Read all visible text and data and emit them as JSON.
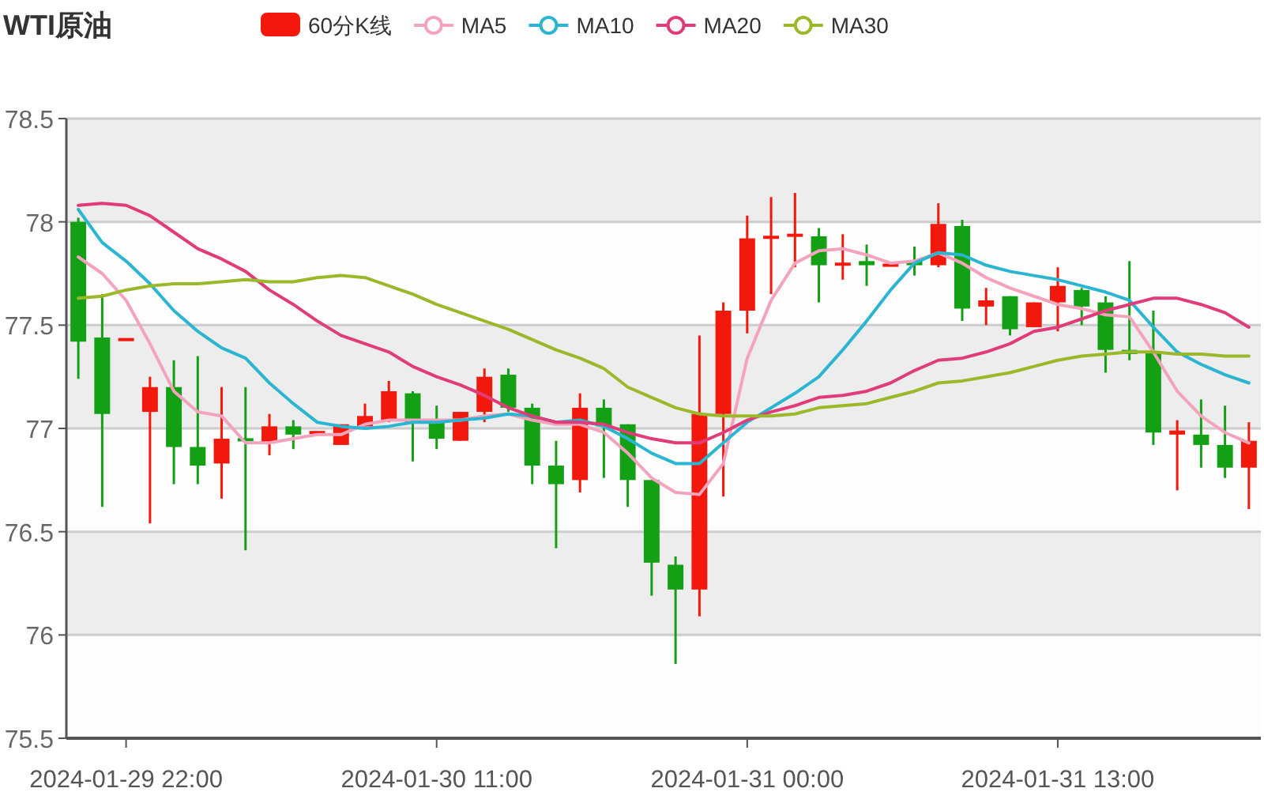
{
  "chart_data": {
    "type": "candlestick",
    "title": "WTI原油",
    "categories": [
      null,
      null,
      "2024-01-29 22:00",
      null,
      null,
      null,
      null,
      null,
      null,
      null,
      null,
      null,
      null,
      null,
      null,
      "2024-01-30 11:00",
      null,
      null,
      null,
      null,
      null,
      null,
      null,
      null,
      null,
      null,
      null,
      null,
      "2024-01-31 00:00",
      null,
      null,
      null,
      null,
      null,
      null,
      null,
      null,
      null,
      null,
      null,
      null,
      "2024-01-31 13:00",
      null,
      null,
      null,
      null,
      null,
      null,
      null,
      null
    ],
    "ylim": [
      75.5,
      78.5
    ],
    "yticks": [
      75.5,
      76,
      76.5,
      77,
      77.5,
      78,
      78.5
    ],
    "grid": "y",
    "legend": "top",
    "series": [
      {
        "name": "60分K线",
        "type": "candlestick",
        "color": "#f2180c",
        "ohlc": [
          [
            78.0,
            78.02,
            77.24,
            77.42
          ],
          [
            77.44,
            77.65,
            76.62,
            77.07
          ],
          [
            77.43,
            77.43,
            77.43,
            77.43
          ],
          [
            77.08,
            77.25,
            76.54,
            77.2
          ],
          [
            77.2,
            77.33,
            76.73,
            76.91
          ],
          [
            76.91,
            77.35,
            76.73,
            76.82
          ],
          [
            76.83,
            77.2,
            76.66,
            76.95
          ],
          [
            76.95,
            77.2,
            76.41,
            76.94
          ],
          [
            76.93,
            77.07,
            76.87,
            77.01
          ],
          [
            77.01,
            77.04,
            76.9,
            76.97
          ],
          [
            76.98,
            76.98,
            76.98,
            76.98
          ],
          [
            76.92,
            77.02,
            76.92,
            77.02
          ],
          [
            77.01,
            77.12,
            77.01,
            77.06
          ],
          [
            77.04,
            77.23,
            77.03,
            77.18
          ],
          [
            77.17,
            77.18,
            76.84,
            77.03
          ],
          [
            77.03,
            77.11,
            76.9,
            76.95
          ],
          [
            76.94,
            77.08,
            76.94,
            77.08
          ],
          [
            77.08,
            77.29,
            77.03,
            77.25
          ],
          [
            77.26,
            77.29,
            77.08,
            77.1
          ],
          [
            77.1,
            77.12,
            76.73,
            76.82
          ],
          [
            76.82,
            76.94,
            76.42,
            76.73
          ],
          [
            76.75,
            77.17,
            76.69,
            77.1
          ],
          [
            77.1,
            77.14,
            76.76,
            77.01
          ],
          [
            77.02,
            77.02,
            76.62,
            76.75
          ],
          [
            76.75,
            76.75,
            76.19,
            76.35
          ],
          [
            76.34,
            76.38,
            75.86,
            76.22
          ],
          [
            76.22,
            77.45,
            76.09,
            77.07
          ],
          [
            77.07,
            77.61,
            76.67,
            77.57
          ],
          [
            77.57,
            78.03,
            77.46,
            77.92
          ],
          [
            77.92,
            78.12,
            77.65,
            77.93
          ],
          [
            77.93,
            78.14,
            77.78,
            77.94
          ],
          [
            77.93,
            77.97,
            77.61,
            77.79
          ],
          [
            77.79,
            77.94,
            77.72,
            77.8
          ],
          [
            77.81,
            77.89,
            77.69,
            77.79
          ],
          [
            77.79,
            77.79,
            77.79,
            77.79
          ],
          [
            77.81,
            77.88,
            77.74,
            77.79
          ],
          [
            77.79,
            78.09,
            77.78,
            77.99
          ],
          [
            77.98,
            78.01,
            77.52,
            77.58
          ],
          [
            77.59,
            77.68,
            77.5,
            77.62
          ],
          [
            77.64,
            77.64,
            77.45,
            77.48
          ],
          [
            77.49,
            77.61,
            77.49,
            77.61
          ],
          [
            77.61,
            77.78,
            77.47,
            77.69
          ],
          [
            77.67,
            77.68,
            77.5,
            77.59
          ],
          [
            77.61,
            77.64,
            77.27,
            77.38
          ],
          [
            77.38,
            77.81,
            77.33,
            77.36
          ],
          [
            77.37,
            77.57,
            76.92,
            76.98
          ],
          [
            76.97,
            77.04,
            76.7,
            76.99
          ],
          [
            76.97,
            77.14,
            76.81,
            76.92
          ],
          [
            76.92,
            77.11,
            76.76,
            76.81
          ],
          [
            76.81,
            77.03,
            76.61,
            76.94
          ]
        ],
        "colors": [
          "#14a014",
          "#14a014",
          "#f2180c",
          "#f2180c",
          "#14a014",
          "#14a014",
          "#f2180c",
          "#14a014",
          "#f2180c",
          "#14a014",
          "#f2180c",
          "#f2180c",
          "#f2180c",
          "#f2180c",
          "#14a014",
          "#14a014",
          "#f2180c",
          "#f2180c",
          "#14a014",
          "#14a014",
          "#14a014",
          "#f2180c",
          "#14a014",
          "#14a014",
          "#14a014",
          "#14a014",
          "#f2180c",
          "#f2180c",
          "#f2180c",
          "#f2180c",
          "#f2180c",
          "#14a014",
          "#f2180c",
          "#14a014",
          "#f2180c",
          "#14a014",
          "#f2180c",
          "#14a014",
          "#f2180c",
          "#14a014",
          "#f2180c",
          "#f2180c",
          "#14a014",
          "#14a014",
          "#14a014",
          "#14a014",
          "#f2180c",
          "#14a014",
          "#14a014",
          "#f2180c"
        ]
      },
      {
        "name": "MA5",
        "type": "line",
        "color": "#f4a3bd",
        "values": [
          77.83,
          77.75,
          77.62,
          77.41,
          77.18,
          77.08,
          77.06,
          76.93,
          76.93,
          76.95,
          76.97,
          76.97,
          77.02,
          77.04,
          77.04,
          77.04,
          77.04,
          77.06,
          77.07,
          77.04,
          77.02,
          77.02,
          76.98,
          76.88,
          76.76,
          76.69,
          76.68,
          76.83,
          77.34,
          77.62,
          77.8,
          77.86,
          77.87,
          77.84,
          77.8,
          77.81,
          77.85,
          77.8,
          77.73,
          77.68,
          77.64,
          77.6,
          77.58,
          77.55,
          77.54,
          77.37,
          77.18,
          77.06,
          76.98,
          76.93
        ]
      },
      {
        "name": "MA10",
        "type": "line",
        "color": "#2bb5d0",
        "values": [
          78.06,
          77.9,
          77.81,
          77.7,
          77.57,
          77.47,
          77.39,
          77.34,
          77.22,
          77.12,
          77.03,
          77.01,
          77.0,
          77.01,
          77.03,
          77.03,
          77.04,
          77.05,
          77.07,
          77.06,
          77.03,
          77.04,
          77.01,
          76.95,
          76.88,
          76.83,
          76.83,
          76.93,
          77.03,
          77.1,
          77.17,
          77.25,
          77.38,
          77.52,
          77.67,
          77.8,
          77.85,
          77.84,
          77.79,
          77.76,
          77.74,
          77.72,
          77.69,
          77.66,
          77.62,
          77.49,
          77.37,
          77.31,
          77.26,
          77.22
        ]
      },
      {
        "name": "MA20",
        "type": "line",
        "color": "#e03c79",
        "values": [
          78.08,
          78.09,
          78.08,
          78.03,
          77.95,
          77.87,
          77.82,
          77.76,
          77.67,
          77.6,
          77.52,
          77.45,
          77.41,
          77.37,
          77.3,
          77.25,
          77.21,
          77.16,
          77.1,
          77.06,
          77.03,
          77.03,
          77.02,
          76.98,
          76.95,
          76.93,
          76.93,
          76.98,
          77.04,
          77.08,
          77.11,
          77.15,
          77.16,
          77.18,
          77.22,
          77.28,
          77.33,
          77.34,
          77.37,
          77.41,
          77.47,
          77.49,
          77.53,
          77.57,
          77.6,
          77.63,
          77.63,
          77.6,
          77.56,
          77.49
        ]
      },
      {
        "name": "MA30",
        "type": "line",
        "color": "#9ab82a",
        "values": [
          77.63,
          77.64,
          77.67,
          77.69,
          77.7,
          77.7,
          77.71,
          77.72,
          77.71,
          77.71,
          77.73,
          77.74,
          77.73,
          77.69,
          77.65,
          77.6,
          77.56,
          77.52,
          77.48,
          77.43,
          77.38,
          77.34,
          77.29,
          77.2,
          77.15,
          77.1,
          77.07,
          77.06,
          77.06,
          77.06,
          77.07,
          77.1,
          77.11,
          77.12,
          77.15,
          77.18,
          77.22,
          77.23,
          77.25,
          77.27,
          77.3,
          77.33,
          77.35,
          77.36,
          77.37,
          77.37,
          77.36,
          77.36,
          77.35,
          77.35
        ]
      }
    ]
  }
}
